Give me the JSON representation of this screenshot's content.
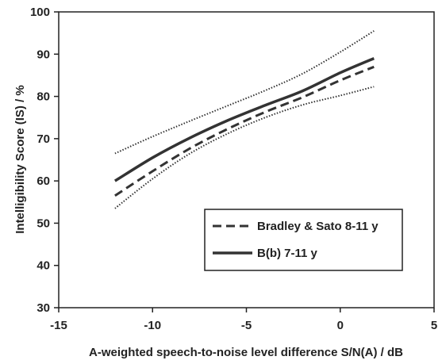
{
  "chart_data": {
    "type": "line",
    "title": "",
    "xlabel": "A-weighted speech-to-noise level difference  S/N(A) / dB",
    "ylabel": "Intelligibility Score (IS) / %",
    "xlim": [
      -15,
      5
    ],
    "ylim": [
      30,
      100
    ],
    "xticks": [
      -15,
      -10,
      -5,
      0,
      5
    ],
    "yticks": [
      30,
      40,
      50,
      60,
      70,
      80,
      90,
      100
    ],
    "xtick_labels": [
      "-15",
      "-10",
      "-5",
      "0",
      "5"
    ],
    "ytick_labels": [
      "30",
      "40",
      "50",
      "60",
      "70",
      "80",
      "90",
      "100"
    ],
    "grid": false,
    "legend_position": "bottom-right",
    "x": [
      -12,
      -10,
      -8,
      -6,
      -4,
      -2,
      0,
      1.8
    ],
    "series": [
      {
        "name": "Bradley & Sato 8-11 y",
        "style": "dashed",
        "values": [
          56.5,
          62.3,
          67.7,
          72.3,
          76.3,
          79.8,
          83.8,
          87.0
        ]
      },
      {
        "name": "B(b) 7-11 y",
        "style": "solid",
        "values": [
          60.0,
          65.5,
          70.2,
          74.3,
          77.9,
          81.3,
          85.6,
          89.0
        ]
      },
      {
        "name": "",
        "style": "dotted",
        "values": [
          66.5,
          70.5,
          74.2,
          77.8,
          81.4,
          85.4,
          90.5,
          95.5
        ]
      },
      {
        "name": "",
        "style": "dotted",
        "values": [
          53.5,
          60.5,
          66.5,
          71.2,
          75.0,
          78.0,
          80.2,
          82.3
        ]
      }
    ]
  }
}
